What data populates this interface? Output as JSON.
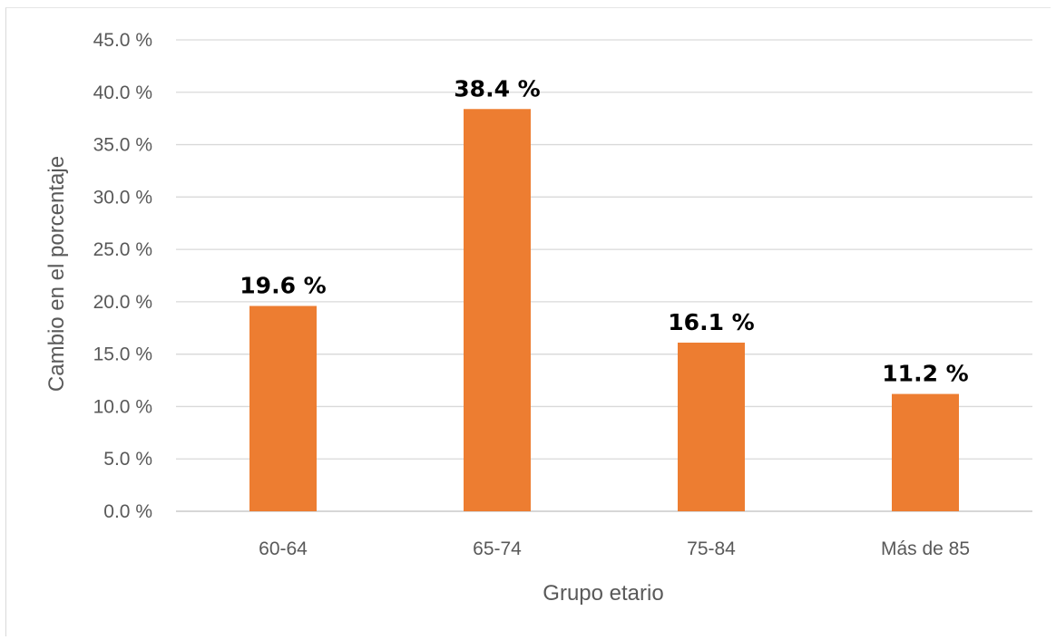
{
  "chart_data": {
    "type": "bar",
    "categories": [
      "60-64",
      "65-74",
      "75-84",
      "Más de 85"
    ],
    "values": [
      19.6,
      38.4,
      16.1,
      11.2
    ],
    "data_labels": [
      "19.6 %",
      "38.4 %",
      "16.1 %",
      "11.2 %"
    ],
    "ylim": [
      0,
      45
    ],
    "yticks": [
      0,
      5,
      10,
      15,
      20,
      25,
      30,
      35,
      40,
      45
    ],
    "ytick_labels": [
      "0.0 %",
      "5.0 %",
      "10.0 %",
      "15.0 %",
      "20.0 %",
      "25.0 %",
      "30.0 %",
      "35.0 %",
      "40.0 %",
      "45.0 %"
    ],
    "xlabel": "Grupo etario",
    "ylabel": "Cambio en el porcentaje",
    "grid": true,
    "legend": "none",
    "colors": {
      "bar": "#ed7d31",
      "grid": "#d9d9d9",
      "axis": "#bfbfbf"
    }
  }
}
